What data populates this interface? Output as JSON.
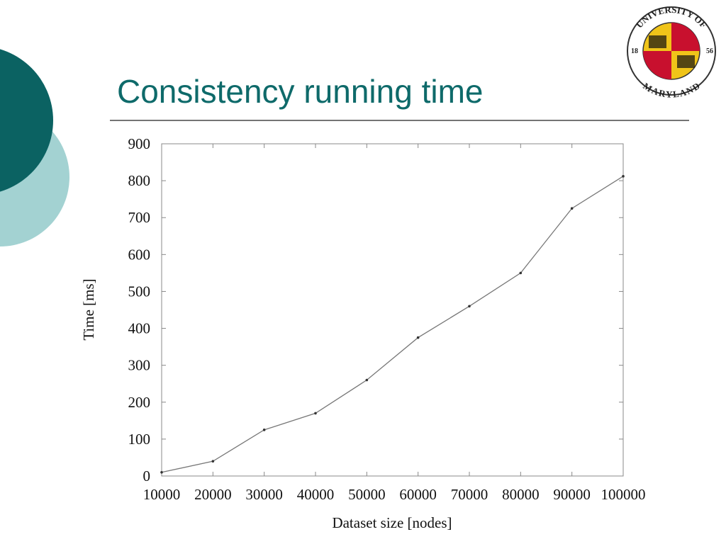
{
  "chart_data": {
    "type": "line",
    "title": "Consistency running time",
    "x": [
      10000,
      20000,
      30000,
      40000,
      50000,
      60000,
      70000,
      80000,
      90000,
      100000
    ],
    "values": [
      10,
      40,
      125,
      170,
      260,
      375,
      460,
      550,
      725,
      812
    ],
    "color": "#777777",
    "xlim": [
      10000,
      100000
    ],
    "xticks": [
      10000,
      20000,
      30000,
      40000,
      50000,
      60000,
      70000,
      80000,
      90000,
      100000
    ],
    "ylim": [
      0,
      900
    ],
    "yticks": [
      0,
      100,
      200,
      300,
      400,
      500,
      600,
      700,
      800,
      900
    ],
    "xlabel": "Dataset size [nodes]",
    "ylabel": "Time [ms]",
    "grid": false
  },
  "logo": {
    "top": "UNIVERSITY OF",
    "bottom": "MARYLAND",
    "left": "18",
    "right": "56"
  }
}
